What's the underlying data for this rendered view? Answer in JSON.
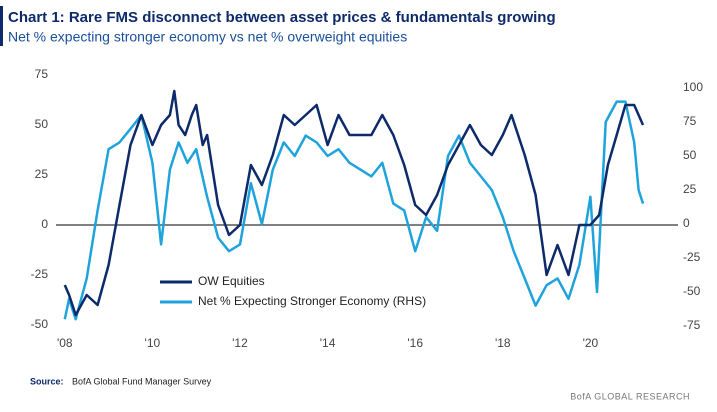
{
  "chart_data": {
    "type": "line",
    "title": "Chart 1:  Rare FMS disconnect between asset prices & fundamentals growing",
    "subtitle": "Net % expecting stronger economy vs net % overweight equities",
    "source_label": "Source:",
    "source": "BofA Global Fund Manager Survey",
    "footer": "BofA GLOBAL RESEARCH",
    "xlim": [
      2007.8,
      2022
    ],
    "xticks": [
      {
        "value": 2008,
        "label": "'08"
      },
      {
        "value": 2010,
        "label": "'10"
      },
      {
        "value": 2012,
        "label": "'12"
      },
      {
        "value": 2014,
        "label": "'14"
      },
      {
        "value": 2016,
        "label": "'16"
      },
      {
        "value": 2018,
        "label": "'18"
      },
      {
        "value": 2020,
        "label": "'20"
      }
    ],
    "ylim": [
      -50,
      75
    ],
    "yticks": [
      -50,
      -25,
      0,
      25,
      50,
      75
    ],
    "y2lim": [
      -75,
      100
    ],
    "y2ticks": [
      -75,
      -50,
      -25,
      0,
      25,
      50,
      75,
      100
    ],
    "legend": "lower-center",
    "series": [
      {
        "name": "OW Equities",
        "color": "#0d2a6b",
        "x": [
          2008.0,
          2008.1,
          2008.25,
          2008.5,
          2008.75,
          2009.0,
          2009.25,
          2009.5,
          2009.75,
          2010.0,
          2010.2,
          2010.4,
          2010.5,
          2010.6,
          2010.75,
          2010.9,
          2011.0,
          2011.15,
          2011.25,
          2011.5,
          2011.75,
          2012.0,
          2012.25,
          2012.5,
          2012.75,
          2013.0,
          2013.25,
          2013.5,
          2013.75,
          2014.0,
          2014.25,
          2014.5,
          2014.75,
          2015.0,
          2015.25,
          2015.5,
          2015.75,
          2016.0,
          2016.25,
          2016.5,
          2016.75,
          2017.0,
          2017.25,
          2017.5,
          2017.75,
          2018.0,
          2018.2,
          2018.5,
          2018.75,
          2019.0,
          2019.25,
          2019.5,
          2019.75,
          2020.0,
          2020.2,
          2020.4,
          2020.6,
          2020.8,
          2021.0,
          2021.2
        ],
        "values": [
          -30,
          -35,
          -45,
          -35,
          -40,
          -20,
          10,
          40,
          55,
          40,
          50,
          55,
          67,
          50,
          45,
          55,
          60,
          40,
          45,
          10,
          -5,
          0,
          30,
          20,
          35,
          55,
          50,
          55,
          60,
          40,
          55,
          45,
          45,
          45,
          55,
          45,
          30,
          10,
          5,
          15,
          30,
          40,
          50,
          40,
          35,
          45,
          55,
          35,
          15,
          -25,
          -10,
          -25,
          0,
          0,
          5,
          30,
          45,
          60,
          60,
          50
        ]
      },
      {
        "name": "Net % Expecting Stronger Economy (RHS)",
        "color": "#1fa3dc",
        "axis": "y2",
        "x": [
          2008.0,
          2008.1,
          2008.25,
          2008.5,
          2008.75,
          2009.0,
          2009.25,
          2009.5,
          2009.75,
          2010.0,
          2010.2,
          2010.4,
          2010.6,
          2010.8,
          2011.0,
          2011.25,
          2011.5,
          2011.75,
          2012.0,
          2012.25,
          2012.5,
          2012.75,
          2013.0,
          2013.25,
          2013.5,
          2013.75,
          2014.0,
          2014.25,
          2014.5,
          2014.75,
          2015.0,
          2015.25,
          2015.5,
          2015.75,
          2016.0,
          2016.25,
          2016.5,
          2016.75,
          2017.0,
          2017.25,
          2017.5,
          2017.75,
          2018.0,
          2018.25,
          2018.5,
          2018.75,
          2019.0,
          2019.25,
          2019.5,
          2019.75,
          2020.0,
          2020.15,
          2020.35,
          2020.6,
          2020.8,
          2021.0,
          2021.1,
          2021.2
        ],
        "values": [
          -70,
          -55,
          -70,
          -40,
          10,
          55,
          60,
          70,
          80,
          45,
          -15,
          40,
          60,
          45,
          55,
          20,
          -10,
          -20,
          -15,
          30,
          0,
          40,
          60,
          50,
          65,
          60,
          50,
          55,
          45,
          40,
          35,
          45,
          15,
          10,
          -20,
          5,
          -5,
          50,
          65,
          45,
          35,
          25,
          5,
          -20,
          -40,
          -60,
          -45,
          -40,
          -55,
          -30,
          20,
          -50,
          75,
          90,
          90,
          60,
          25,
          15
        ]
      }
    ]
  }
}
